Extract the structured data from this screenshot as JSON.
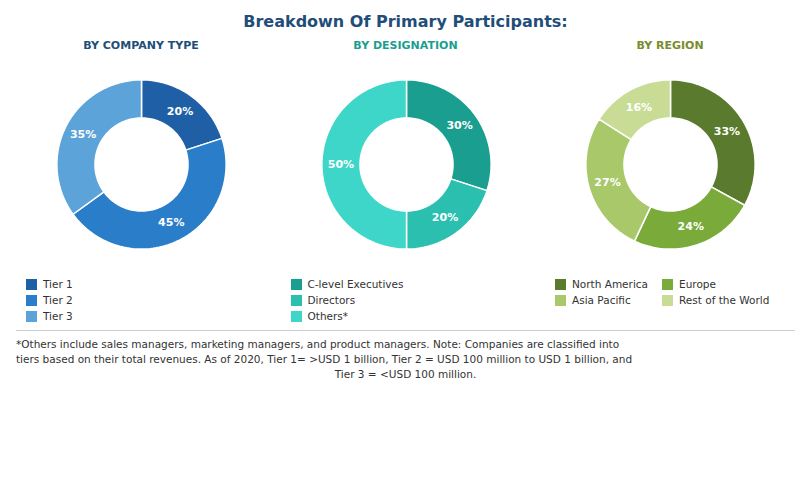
{
  "title": "Breakdown Of Primary Participants:",
  "annotations": [
    "*Others include sales managers, marketing managers, and product managers. Note: Companies are classified into",
    "tiers based on their total revenues. As of 2020, Tier 1= >USD 1 billion, Tier 2 = USD 100 million to USD 1 billion, and",
    "Tier 3 = <USD 100 million."
  ],
  "chart_data": [
    {
      "type": "pie",
      "title": "BY COMPANY TYPE",
      "categories": [
        "Tier 1",
        "Tier 2",
        "Tier 3"
      ],
      "values": [
        20,
        45,
        35
      ],
      "value_labels": [
        "20%",
        "45%",
        "35%"
      ],
      "colors": [
        "#1f5fa6",
        "#2a7dc9",
        "#5ba3d9"
      ],
      "data_labels": true,
      "legend": "bottom"
    },
    {
      "type": "pie",
      "title": "BY DESIGNATION",
      "categories": [
        "C-level Executives",
        "Directors",
        "Others*"
      ],
      "values": [
        30,
        20,
        50
      ],
      "value_labels": [
        "30%",
        "20%",
        "50%"
      ],
      "colors": [
        "#1a9e8f",
        "#2bbfb0",
        "#3dd6c8"
      ],
      "data_labels": true,
      "legend": "bottom"
    },
    {
      "type": "pie",
      "title": "BY REGION",
      "categories": [
        "North America",
        "Europe",
        "Asia Pacific",
        "Rest of the World"
      ],
      "values": [
        33,
        24,
        27,
        16
      ],
      "value_labels": [
        "33%",
        "24%",
        "27%",
        "16%"
      ],
      "colors": [
        "#5a7a2e",
        "#7aaa3a",
        "#a8c86a",
        "#c8dc96"
      ],
      "data_labels": true,
      "legend": "bottom"
    }
  ]
}
